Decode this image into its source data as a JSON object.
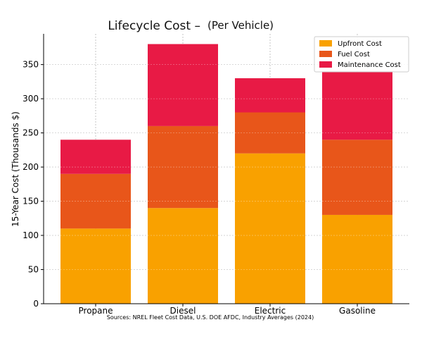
{
  "chart_data": {
    "type": "bar",
    "stacked": true,
    "title": "Lifecycle Cost –",
    "subtitle": "(Per Vehicle)",
    "xlabel": "",
    "ylabel": "15-Year Cost (Thousands $)",
    "ylim": [
      0,
      395
    ],
    "yticks": [
      0,
      50,
      100,
      150,
      200,
      250,
      300,
      350
    ],
    "grid": true,
    "legend_position": "top-right",
    "categories": [
      "Propane",
      "Diesel",
      "Electric",
      "Gasoline"
    ],
    "series": [
      {
        "name": "Upfront Cost",
        "values": [
          110,
          140,
          220,
          130
        ],
        "color": "#f9a100"
      },
      {
        "name": "Fuel Cost",
        "values": [
          80,
          120,
          60,
          110
        ],
        "color": "#e8561a"
      },
      {
        "name": "Maintenance Cost",
        "values": [
          50,
          120,
          50,
          100
        ],
        "color": "#e81a45"
      }
    ],
    "source": "Sources: NREL Fleet Cost Data, U.S. DOE AFDC, Industry Averages (2024)"
  }
}
